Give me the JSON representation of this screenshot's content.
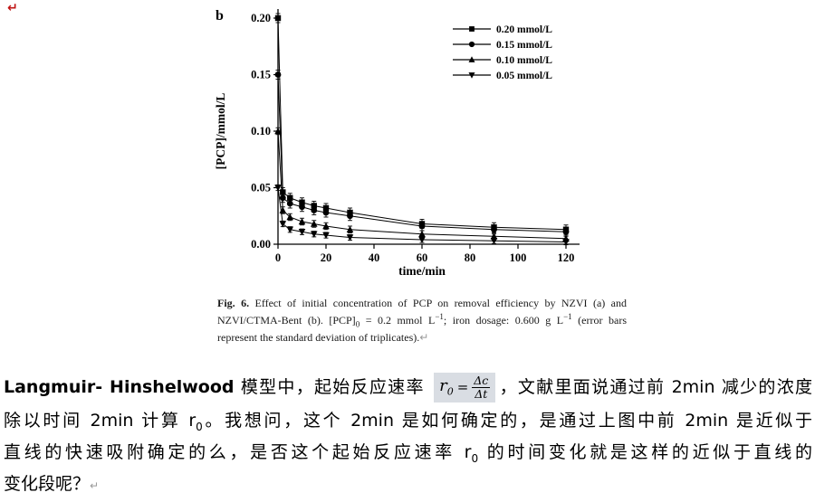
{
  "page": {
    "red_mark": "↵",
    "pilcrow": "↵"
  },
  "figure": {
    "panel_label": "b",
    "caption": {
      "fig_label": "Fig. 6.",
      "seg1": " Effect of initial concentration of PCP on removal efficiency by NZVI (a) and NZVI/CTMA-Bent (b). [PCP]",
      "sub0": "0",
      "seg2": " = 0.2 mmol L",
      "sup1": "−1",
      "seg3": "; iron dosage: 0.600 g L",
      "sup2": "−1",
      "seg4": " (error bars represent the standard deviation of triplicates)."
    }
  },
  "chart_data": {
    "type": "line",
    "panel_label": "b",
    "title": "",
    "xlabel": "time/min",
    "ylabel": "[PCP]/mmol/L",
    "xlim": [
      0,
      120
    ],
    "ylim": [
      0,
      0.2
    ],
    "xticks": [
      0,
      20,
      40,
      60,
      80,
      100,
      120
    ],
    "yticks": [
      "0.00",
      "0.05",
      "0.10",
      "0.15",
      "0.20"
    ],
    "grid": false,
    "legend_position": "top-right",
    "x": [
      0,
      2,
      5,
      10,
      15,
      20,
      30,
      60,
      90,
      120
    ],
    "series": [
      {
        "name": "0.20 mmol/L",
        "marker": "square",
        "error": 0.004,
        "y": [
          0.2,
          0.046,
          0.041,
          0.037,
          0.034,
          0.032,
          0.028,
          0.018,
          0.015,
          0.013
        ]
      },
      {
        "name": "0.15 mmol/L",
        "marker": "circle",
        "error": 0.004,
        "y": [
          0.15,
          0.041,
          0.036,
          0.033,
          0.03,
          0.028,
          0.025,
          0.016,
          0.013,
          0.011
        ]
      },
      {
        "name": "0.10 mmol/L",
        "marker": "triangle-up",
        "error": 0.003,
        "y": [
          0.1,
          0.03,
          0.024,
          0.02,
          0.018,
          0.016,
          0.013,
          0.009,
          0.007,
          0.005
        ]
      },
      {
        "name": "0.05 mmol/L",
        "marker": "triangle-down",
        "error": 0.0025,
        "y": [
          0.05,
          0.018,
          0.013,
          0.011,
          0.009,
          0.008,
          0.006,
          0.004,
          0.003,
          0.002
        ]
      }
    ]
  },
  "body": {
    "p1_bold": "Langmuir- Hinshelwood",
    "p1_seg1": " 模型中，起始反应速率 ",
    "formula": {
      "r": "r",
      "sub": "0",
      "eq": "=",
      "num": "Δc",
      "den": "Δt"
    },
    "p1_seg2": "，文献里面说通过前 2min 减少的浓度",
    "p2_seg1": "除以时间 2min 计算 r",
    "p2_sub": "0",
    "p2_seg2": "。我想问，这个 2min 是如何确定的，是通过上图中前 2min 是近似于",
    "p3_seg1": "直线的快速吸附确定的么，是否这个起始反应速率 r",
    "p3_sub": "0",
    "p3_seg2": " 的时间变化就是这样的近似于直线的",
    "p4": "变化段呢？"
  }
}
